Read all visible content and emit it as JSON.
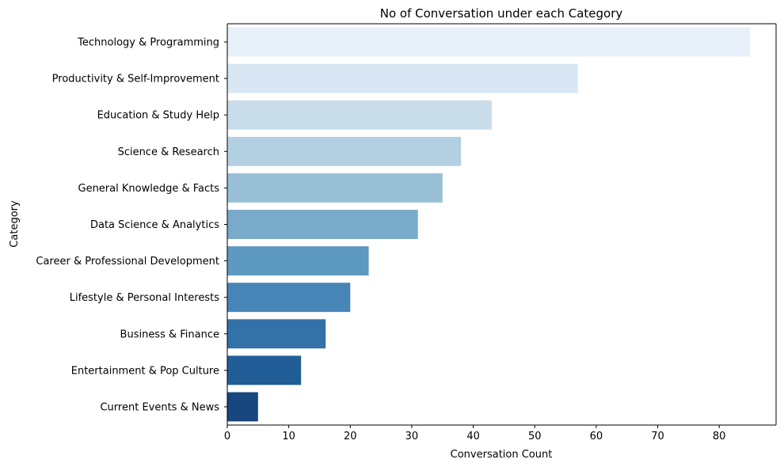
{
  "chart_data": {
    "type": "bar",
    "orientation": "horizontal",
    "title": "No of Conversation under each Category",
    "xlabel": "Conversation Count",
    "ylabel": "Category",
    "xlim": [
      0,
      89.25
    ],
    "xticks": [
      0,
      10,
      20,
      30,
      40,
      50,
      60,
      70,
      80
    ],
    "grid": false,
    "legend": "none",
    "categories": [
      "Technology & Programming",
      "Productivity & Self-Improvement",
      "Education & Study Help",
      "Science & Research",
      "General Knowledge & Facts",
      "Data Science & Analytics",
      "Career & Professional Development",
      "Lifestyle & Personal Interests",
      "Business & Finance",
      "Entertainment & Pop Culture",
      "Current Events & News"
    ],
    "values": [
      85,
      57,
      43,
      38,
      35,
      31,
      23,
      20,
      16,
      12,
      5
    ],
    "colors": [
      "#e8f0f9",
      "#d9e7f4",
      "#c8dcea",
      "#b3d0e2",
      "#98bfd6",
      "#79aac9",
      "#5d99c1",
      "#4785b7",
      "#3371a9",
      "#215d96",
      "#18467e"
    ]
  }
}
